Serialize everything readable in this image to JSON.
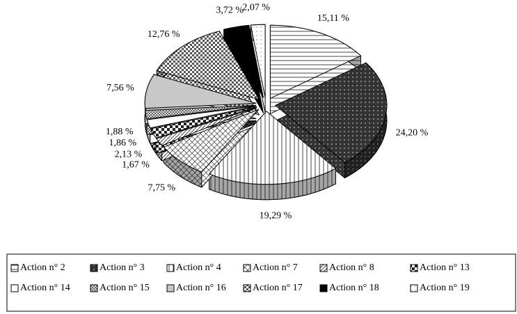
{
  "chart_data": {
    "type": "pie",
    "categories": [
      "Action n° 2",
      "Action n° 3",
      "Action n° 4",
      "Action n° 7",
      "Action n° 8",
      "Action n° 13",
      "Action n° 14",
      "Action n° 15",
      "Action n° 16",
      "Action n° 17",
      "Action n° 18",
      "Action n° 19"
    ],
    "values": [
      15.11,
      24.2,
      19.29,
      7.75,
      1.67,
      2.13,
      1.86,
      1.88,
      7.56,
      12.76,
      3.72,
      2.07
    ],
    "value_labels": [
      "15,11 %",
      "24,20 %",
      "19,29 %",
      "7,75 %",
      "1,67 %",
      "2,13 %",
      "1,86 %",
      "1,88 %",
      "7,56 %",
      "12,76 %",
      "3,72 %",
      "2,07 %"
    ],
    "legend": "bottom"
  }
}
